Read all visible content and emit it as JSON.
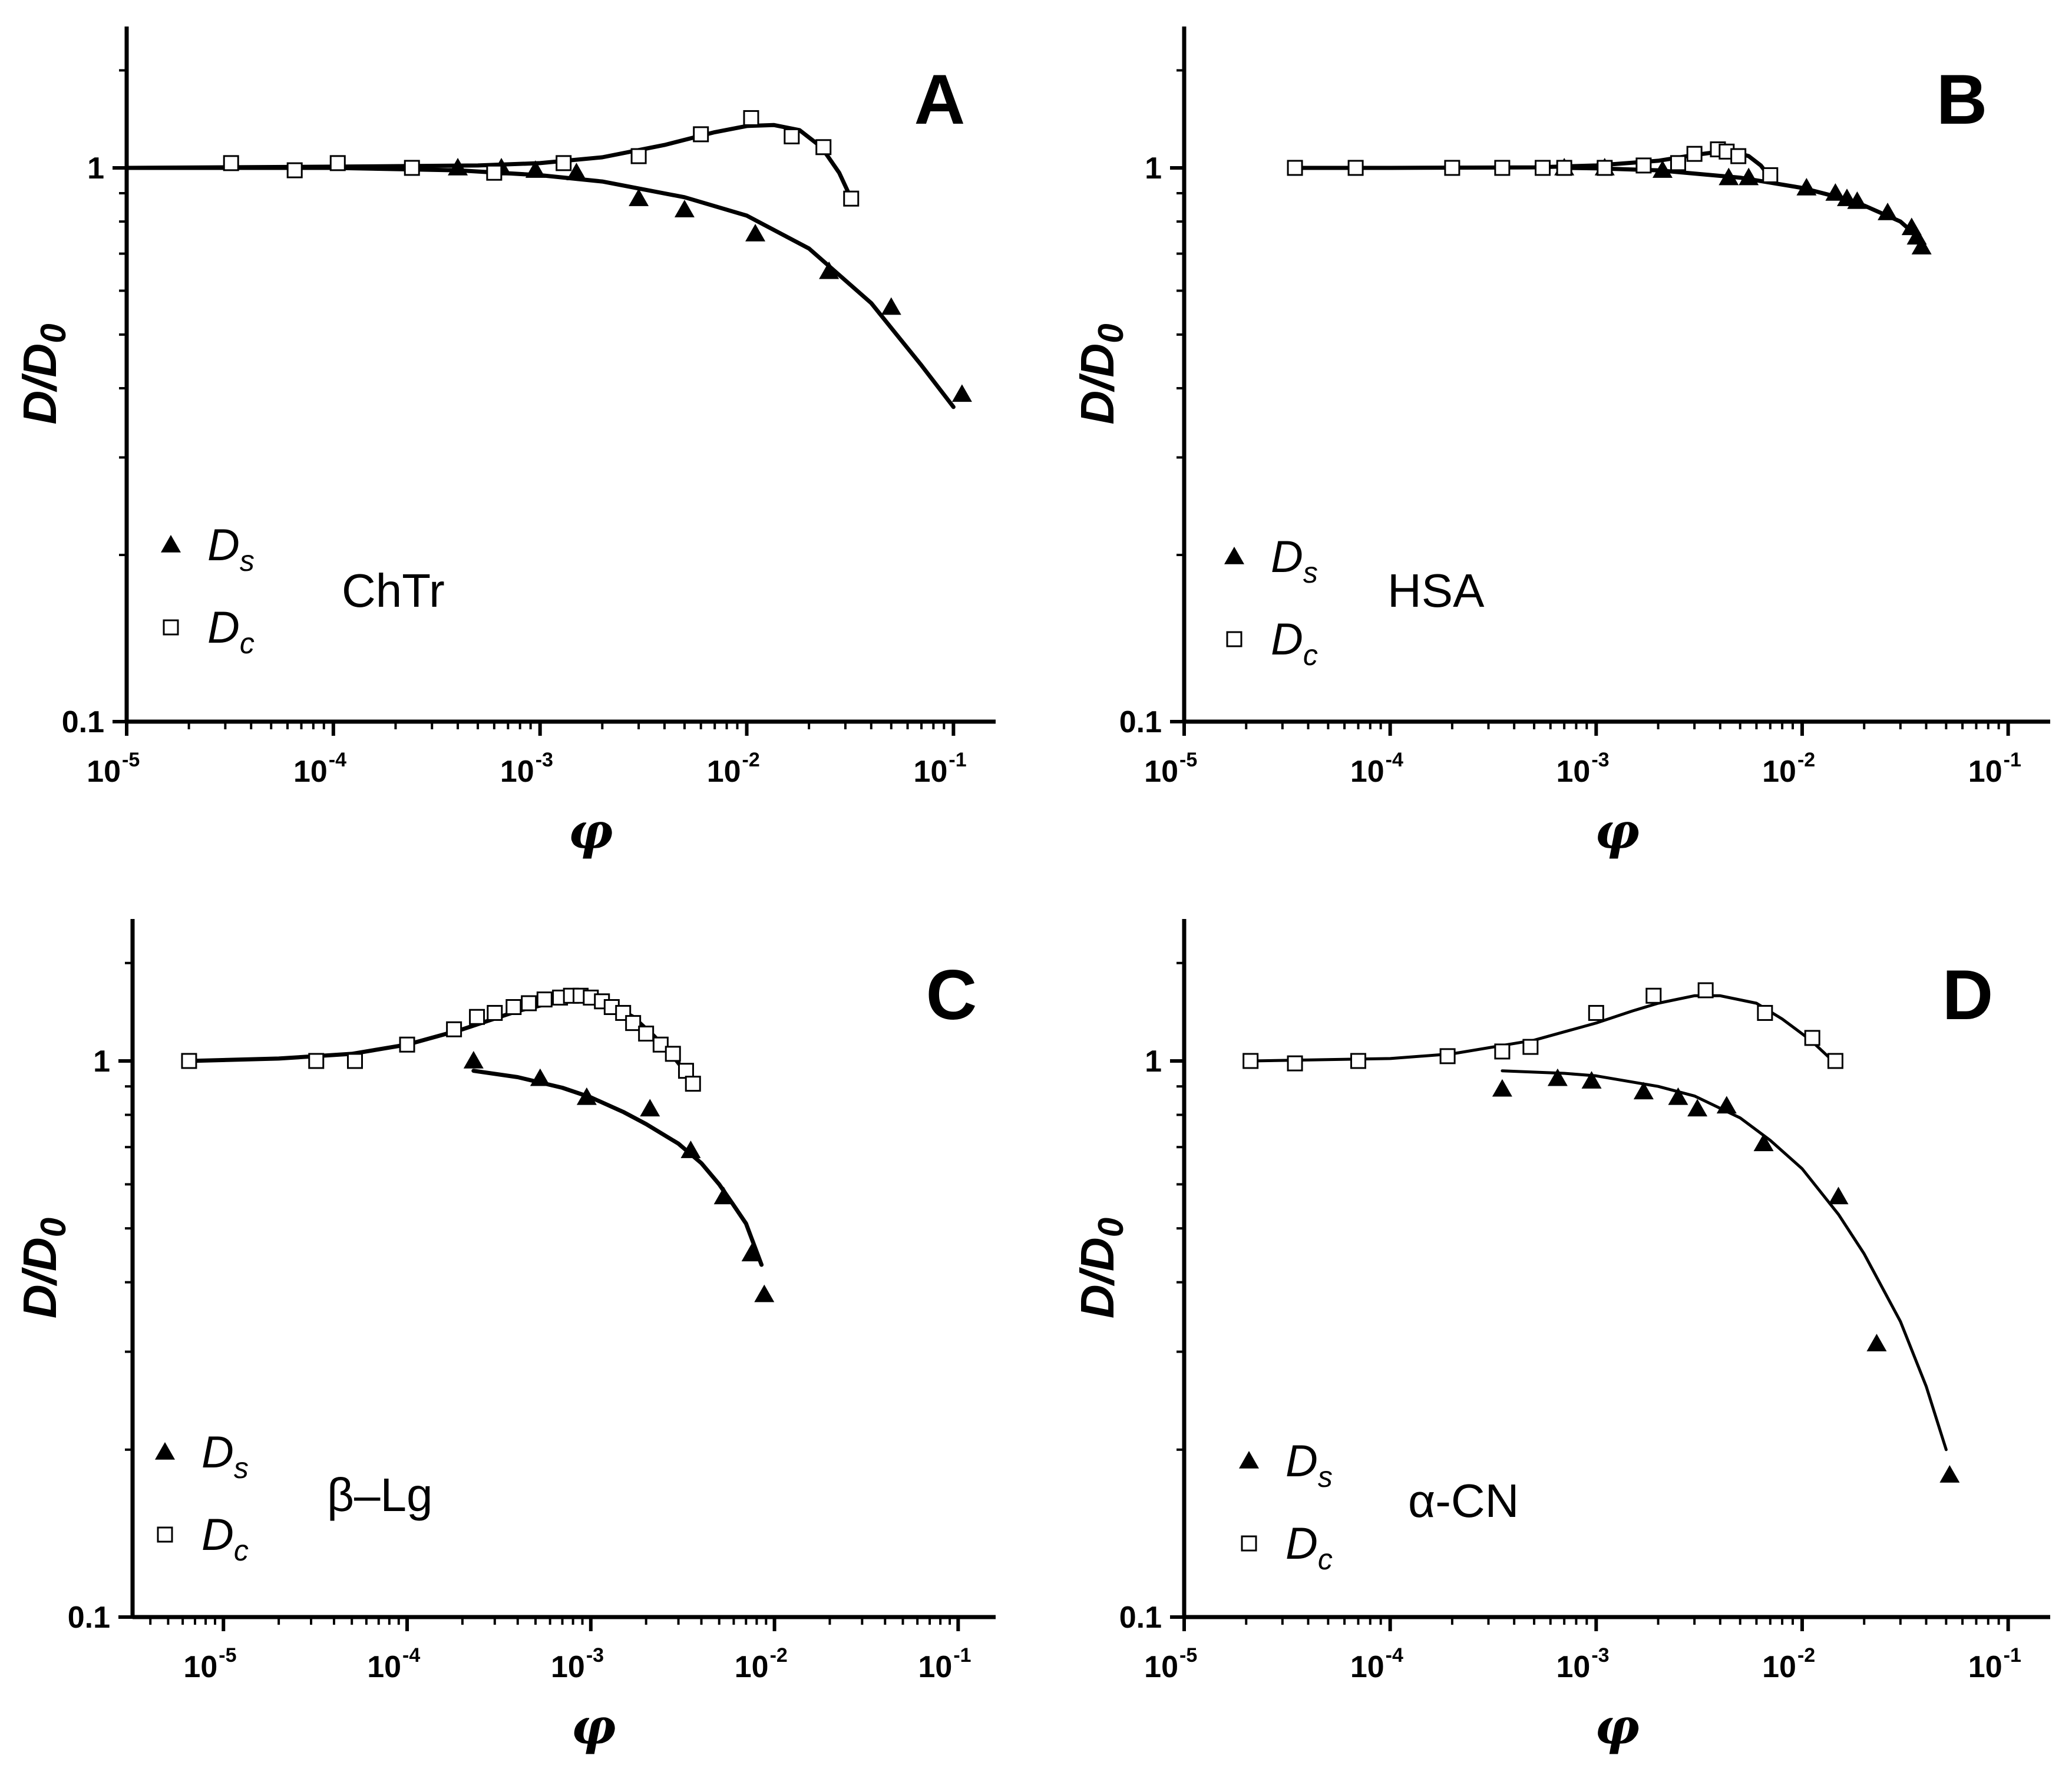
{
  "figure": {
    "ylabel": "D/D",
    "ylabel_sub": "0",
    "xlabel": "φ",
    "x_tick_base": "10",
    "x_tick_exponents": [
      "-5",
      "-4",
      "-3",
      "-2",
      "-1"
    ],
    "y_tick_labels": [
      "1",
      "0.1"
    ],
    "legend_series": [
      "D",
      "D"
    ],
    "legend_subs": [
      "s",
      "c"
    ]
  },
  "chart_data": [
    {
      "panel": "A",
      "type": "scatter",
      "sample": "ChTr",
      "xscale": "log",
      "yscale": "log",
      "xlim": [
        1e-05,
        0.16
      ],
      "ylim": [
        0.1,
        1.8
      ],
      "xlabel": "φ",
      "ylabel": "D/D0",
      "legend_position": "lower-left",
      "series": [
        {
          "name": "Ds",
          "marker": "filled-triangle",
          "x": [
            0.0004,
            0.00065,
            0.00095,
            0.0015,
            0.003,
            0.005,
            0.011,
            0.025,
            0.05,
            0.11
          ],
          "y": [
            1.0,
            1.0,
            0.99,
            0.98,
            0.88,
            0.84,
            0.76,
            0.65,
            0.56,
            0.39
          ],
          "fit_x": [
            1e-05,
            0.0001,
            0.0004,
            0.001,
            0.002,
            0.005,
            0.01,
            0.02,
            0.04,
            0.07,
            0.1
          ],
          "fit_y": [
            1.0,
            1.0,
            0.99,
            0.97,
            0.945,
            0.885,
            0.82,
            0.715,
            0.57,
            0.44,
            0.37
          ]
        },
        {
          "name": "Dc",
          "marker": "open-square",
          "x": [
            3.2e-05,
            6.5e-05,
            0.000105,
            0.00024,
            0.0006,
            0.0013,
            0.003,
            0.006,
            0.0105,
            0.0165,
            0.0235,
            0.032
          ],
          "y": [
            1.02,
            0.99,
            1.02,
            1.0,
            0.98,
            1.02,
            1.05,
            1.15,
            1.23,
            1.14,
            1.09,
            0.88
          ],
          "fit_x": [
            1e-05,
            0.0001,
            0.0005,
            0.001,
            0.002,
            0.004,
            0.007,
            0.01,
            0.0135,
            0.018,
            0.023,
            0.028,
            0.032
          ],
          "fit_y": [
            1.0,
            1.005,
            1.01,
            1.02,
            1.045,
            1.1,
            1.16,
            1.19,
            1.195,
            1.17,
            1.09,
            0.98,
            0.88
          ]
        }
      ]
    },
    {
      "panel": "B",
      "type": "scatter",
      "sample": "HSA",
      "xscale": "log",
      "yscale": "log",
      "xlim": [
        1e-05,
        0.16
      ],
      "ylim": [
        0.1,
        1.8
      ],
      "xlabel": "φ",
      "ylabel": "D/D0",
      "legend_position": "lower-left",
      "series": [
        {
          "name": "Ds",
          "marker": "filled-triangle",
          "x": [
            0.0007,
            0.0011,
            0.0021,
            0.0044,
            0.0055,
            0.0105,
            0.0145,
            0.0165,
            0.0185,
            0.026,
            0.034,
            0.036,
            0.038
          ],
          "y": [
            1.0,
            1.0,
            0.99,
            0.96,
            0.96,
            0.92,
            0.9,
            0.88,
            0.87,
            0.83,
            0.78,
            0.75,
            0.72
          ],
          "fit_x": [
            0.0007,
            0.001,
            0.002,
            0.005,
            0.01,
            0.015,
            0.02,
            0.03,
            0.038
          ],
          "fit_y": [
            1.0,
            0.998,
            0.99,
            0.96,
            0.92,
            0.885,
            0.855,
            0.8,
            0.74
          ]
        },
        {
          "name": "Dc",
          "marker": "open-square",
          "x": [
            3.45e-05,
            6.8e-05,
            0.0002,
            0.00035,
            0.00055,
            0.0007,
            0.0011,
            0.0017,
            0.0025,
            0.003,
            0.0039,
            0.0043,
            0.0049,
            0.007
          ],
          "y": [
            1.0,
            1.0,
            1.0,
            1.0,
            1.0,
            1.0,
            1.0,
            1.01,
            1.02,
            1.06,
            1.08,
            1.07,
            1.05,
            0.97
          ],
          "fit_x": [
            3.45e-05,
            0.0001,
            0.0005,
            0.001,
            0.002,
            0.003,
            0.004,
            0.0047,
            0.0055,
            0.0063,
            0.007
          ],
          "fit_y": [
            1.0,
            1.0,
            1.002,
            1.01,
            1.03,
            1.055,
            1.07,
            1.068,
            1.05,
            1.01,
            0.96
          ]
        }
      ]
    },
    {
      "panel": "C",
      "type": "scatter",
      "sample": "β–Lg",
      "xscale": "log",
      "yscale": "log",
      "xlim": [
        3.2e-06,
        0.16
      ],
      "ylim": [
        0.1,
        1.8
      ],
      "xlabel": "φ",
      "ylabel": "D/D0",
      "legend_position": "lower-left",
      "series": [
        {
          "name": "Ds",
          "marker": "filled-triangle",
          "x": [
            0.00023,
            0.00053,
            0.00095,
            0.0021,
            0.0035,
            0.0053,
            0.0075,
            0.0088
          ],
          "y": [
            1.0,
            0.93,
            0.86,
            0.82,
            0.69,
            0.57,
            0.45,
            0.38
          ],
          "fit_x": [
            0.00023,
            0.0004,
            0.0007,
            0.001,
            0.0015,
            0.002,
            0.003,
            0.004,
            0.005,
            0.006,
            0.007,
            0.0085
          ],
          "fit_y": [
            0.96,
            0.935,
            0.895,
            0.86,
            0.81,
            0.77,
            0.71,
            0.655,
            0.6,
            0.55,
            0.51,
            0.43
          ]
        },
        {
          "name": "Dc",
          "marker": "open-square",
          "x": [
            6.5e-06,
            3.2e-05,
            5.2e-05,
            0.0001,
            0.00018,
            0.00024,
            0.0003,
            0.00038,
            0.00046,
            0.00056,
            0.00068,
            0.00078,
            0.00088,
            0.001,
            0.00115,
            0.0013,
            0.0015,
            0.0017,
            0.002,
            0.0024,
            0.0028,
            0.0033,
            0.0036
          ],
          "y": [
            1.0,
            1.0,
            1.0,
            1.07,
            1.14,
            1.2,
            1.22,
            1.25,
            1.27,
            1.29,
            1.3,
            1.31,
            1.31,
            1.3,
            1.28,
            1.25,
            1.22,
            1.17,
            1.12,
            1.07,
            1.03,
            0.96,
            0.91
          ],
          "fit_x": [
            6.5e-06,
            2e-05,
            5e-05,
            0.0001,
            0.0002,
            0.0004,
            0.0006,
            0.0008,
            0.001,
            0.0013,
            0.0017,
            0.0022,
            0.0028,
            0.0036
          ],
          "fit_y": [
            1.0,
            1.01,
            1.03,
            1.07,
            1.14,
            1.23,
            1.27,
            1.29,
            1.29,
            1.26,
            1.2,
            1.11,
            1.02,
            0.92
          ]
        }
      ]
    },
    {
      "panel": "D",
      "type": "scatter",
      "sample": "α-CN",
      "xscale": "log",
      "yscale": "log",
      "xlim": [
        1e-05,
        0.16
      ],
      "ylim": [
        0.1,
        1.8
      ],
      "xlabel": "φ",
      "ylabel": "D/D0",
      "legend_position": "lower-left",
      "series": [
        {
          "name": "Ds",
          "marker": "filled-triangle",
          "x": [
            0.00035,
            0.00065,
            0.00095,
            0.0017,
            0.0025,
            0.0031,
            0.0043,
            0.0065,
            0.015,
            0.023,
            0.052
          ],
          "y": [
            0.89,
            0.93,
            0.92,
            0.88,
            0.86,
            0.82,
            0.83,
            0.71,
            0.57,
            0.31,
            0.18
          ],
          "fit_x": [
            0.00035,
            0.0007,
            0.001,
            0.002,
            0.003,
            0.005,
            0.007,
            0.01,
            0.015,
            0.02,
            0.03,
            0.04,
            0.05
          ],
          "fit_y": [
            0.96,
            0.95,
            0.94,
            0.9,
            0.865,
            0.79,
            0.72,
            0.64,
            0.53,
            0.45,
            0.34,
            0.26,
            0.2
          ]
        },
        {
          "name": "Dc",
          "marker": "open-square",
          "x": [
            2.1e-05,
            3.45e-05,
            7e-05,
            0.00019,
            0.00035,
            0.00048,
            0.001,
            0.0019,
            0.0034,
            0.0066,
            0.0112,
            0.0145
          ],
          "y": [
            1.0,
            0.99,
            1.0,
            1.02,
            1.04,
            1.06,
            1.22,
            1.31,
            1.34,
            1.22,
            1.1,
            1.0
          ],
          "fit_x": [
            2.1e-05,
            0.0001,
            0.0002,
            0.0005,
            0.001,
            0.0015,
            0.002,
            0.003,
            0.004,
            0.006,
            0.008,
            0.011,
            0.0145
          ],
          "fit_y": [
            1.0,
            1.01,
            1.03,
            1.09,
            1.17,
            1.23,
            1.27,
            1.31,
            1.31,
            1.27,
            1.19,
            1.09,
            0.99
          ]
        }
      ]
    }
  ]
}
